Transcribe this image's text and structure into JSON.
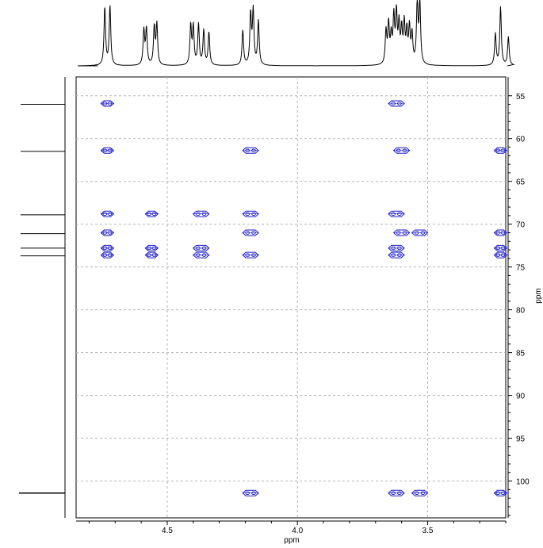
{
  "chart_data": {
    "type": "scatter",
    "title": "",
    "xlabel": "ppm",
    "ylabel": "ppm",
    "x_reversed": true,
    "y_reversed": true,
    "xlim": [
      4.85,
      3.2
    ],
    "ylim": [
      52.8,
      104.3
    ],
    "x_ticks": [
      4.5,
      4.0,
      3.5
    ],
    "x_tick_labels": [
      "4.5",
      "4.0",
      "3.5"
    ],
    "y_ticks": [
      55,
      60,
      65,
      70,
      75,
      80,
      85,
      90,
      95,
      100
    ],
    "y_tick_labels": [
      "55",
      "60",
      "65",
      "70",
      "75",
      "80",
      "85",
      "90",
      "95",
      "100"
    ],
    "grid": true,
    "contour_color": "#1a1acc",
    "f2_projection_peaks": [
      {
        "ppm": 4.74,
        "height": 0.92
      },
      {
        "ppm": 4.72,
        "height": 0.94
      },
      {
        "ppm": 4.59,
        "height": 0.55
      },
      {
        "ppm": 4.58,
        "height": 0.57
      },
      {
        "ppm": 4.55,
        "height": 0.6
      },
      {
        "ppm": 4.54,
        "height": 0.64
      },
      {
        "ppm": 4.41,
        "height": 0.62
      },
      {
        "ppm": 4.4,
        "height": 0.6
      },
      {
        "ppm": 4.38,
        "height": 0.64
      },
      {
        "ppm": 4.36,
        "height": 0.55
      },
      {
        "ppm": 4.34,
        "height": 0.52
      },
      {
        "ppm": 4.21,
        "height": 0.55
      },
      {
        "ppm": 4.18,
        "height": 0.8
      },
      {
        "ppm": 4.17,
        "height": 0.85
      },
      {
        "ppm": 4.15,
        "height": 0.7
      },
      {
        "ppm": 3.66,
        "height": 0.52
      },
      {
        "ppm": 3.65,
        "height": 0.62
      },
      {
        "ppm": 3.64,
        "height": 0.42
      },
      {
        "ppm": 3.63,
        "height": 0.72
      },
      {
        "ppm": 3.62,
        "height": 0.78
      },
      {
        "ppm": 3.61,
        "height": 0.6
      },
      {
        "ppm": 3.6,
        "height": 0.52
      },
      {
        "ppm": 3.59,
        "height": 0.62
      },
      {
        "ppm": 3.58,
        "height": 0.5
      },
      {
        "ppm": 3.57,
        "height": 0.56
      },
      {
        "ppm": 3.56,
        "height": 0.46
      },
      {
        "ppm": 3.54,
        "height": 0.98
      },
      {
        "ppm": 3.53,
        "height": 0.96
      },
      {
        "ppm": 3.24,
        "height": 0.5
      },
      {
        "ppm": 3.22,
        "height": 0.92
      },
      {
        "ppm": 3.19,
        "height": 0.45
      }
    ],
    "f1_projection_peaks": [
      {
        "ppm": 56.0,
        "height": 0.85
      },
      {
        "ppm": 61.5,
        "height": 0.85
      },
      {
        "ppm": 68.9,
        "height": 0.85
      },
      {
        "ppm": 71.1,
        "height": 0.85
      },
      {
        "ppm": 72.8,
        "height": 0.85
      },
      {
        "ppm": 73.7,
        "height": 0.85
      },
      {
        "ppm": 101.4,
        "height": 0.88
      }
    ],
    "cross_peaks": [
      {
        "x": 4.73,
        "y": 55.9
      },
      {
        "x": 3.62,
        "y": 55.9
      },
      {
        "x": 4.73,
        "y": 61.4
      },
      {
        "x": 4.18,
        "y": 61.4
      },
      {
        "x": 3.6,
        "y": 61.4
      },
      {
        "x": 3.22,
        "y": 61.4
      },
      {
        "x": 4.73,
        "y": 68.8
      },
      {
        "x": 4.56,
        "y": 68.8
      },
      {
        "x": 4.37,
        "y": 68.8
      },
      {
        "x": 4.18,
        "y": 68.8
      },
      {
        "x": 3.62,
        "y": 68.8
      },
      {
        "x": 4.73,
        "y": 71.0
      },
      {
        "x": 4.18,
        "y": 71.0
      },
      {
        "x": 3.6,
        "y": 71.0
      },
      {
        "x": 3.53,
        "y": 71.0
      },
      {
        "x": 3.22,
        "y": 71.0
      },
      {
        "x": 4.73,
        "y": 72.8
      },
      {
        "x": 4.56,
        "y": 72.8
      },
      {
        "x": 4.37,
        "y": 72.8
      },
      {
        "x": 3.62,
        "y": 72.8
      },
      {
        "x": 3.22,
        "y": 72.8
      },
      {
        "x": 4.73,
        "y": 73.6
      },
      {
        "x": 4.56,
        "y": 73.6
      },
      {
        "x": 4.37,
        "y": 73.6
      },
      {
        "x": 4.18,
        "y": 73.6
      },
      {
        "x": 3.62,
        "y": 73.6
      },
      {
        "x": 3.22,
        "y": 73.6
      },
      {
        "x": 4.18,
        "y": 101.4
      },
      {
        "x": 3.62,
        "y": 101.4
      },
      {
        "x": 3.53,
        "y": 101.4
      },
      {
        "x": 3.22,
        "y": 101.4
      }
    ]
  }
}
